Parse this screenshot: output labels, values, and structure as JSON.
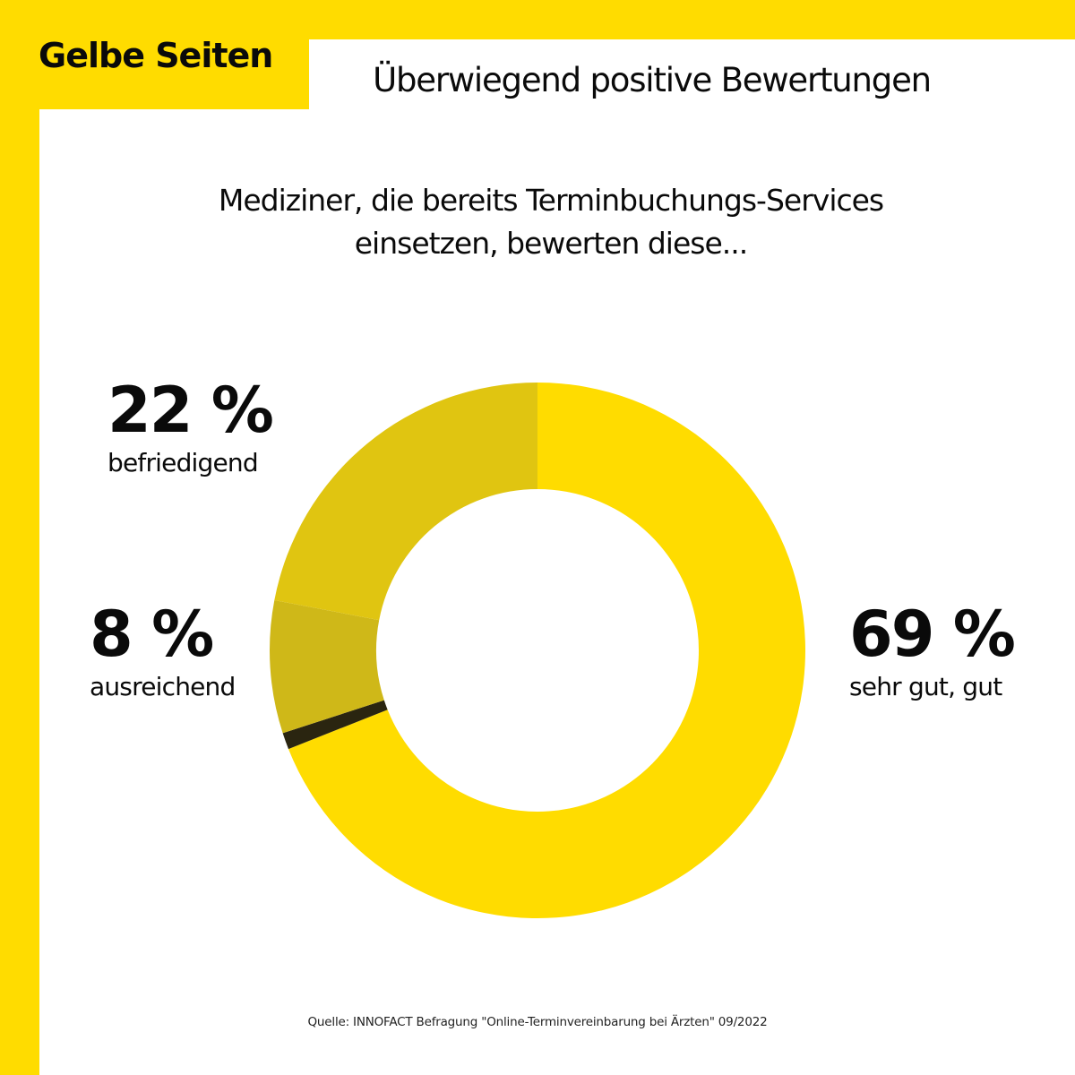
{
  "brand": {
    "logo_text": "Gelbe Seiten",
    "colors": {
      "brand_yellow": "#FFDC00",
      "text": "#0A0A0A",
      "background": "#FFFFFF"
    }
  },
  "headline": "Überwiegend positive Bewertungen",
  "subtitle": {
    "line1": "Mediziner, die bereits Terminbuchungs-Services",
    "line2": "einsetzen, bewerten diese..."
  },
  "chart_data": {
    "type": "pie",
    "variant": "donut",
    "title": "Mediziner, die bereits Terminbuchungs-Services einsetzen, bewerten diese...",
    "unit": "%",
    "start": "12 o'clock, clockwise",
    "slices": [
      {
        "key": "sehr_gut_gut",
        "label": "sehr gut, gut",
        "value": 69,
        "display": "69 %",
        "color": "#FFDC00"
      },
      {
        "key": "other",
        "label": "",
        "value": 1,
        "display": "",
        "color": "#2A2510"
      },
      {
        "key": "ausreichend",
        "label": "ausreichend",
        "value": 8,
        "display": "8 %",
        "color": "#CFB818"
      },
      {
        "key": "befriedigend",
        "label": "befriedigend",
        "value": 22,
        "display": "22 %",
        "color": "#E0C511"
      }
    ],
    "legend": "none (direct labels: 22 % top-left, 8 % left, 69 % right)"
  },
  "labels": {
    "befriedigend": {
      "pct": "22 %",
      "cat": "befriedigend"
    },
    "ausreichend": {
      "pct": "8 %",
      "cat": "ausreichend"
    },
    "sehr_gut": {
      "pct": "69 %",
      "cat": "sehr gut, gut"
    }
  },
  "source": "Quelle: INNOFACT Befragung \"Online-Terminvereinbarung bei Ärzten\" 09/2022"
}
